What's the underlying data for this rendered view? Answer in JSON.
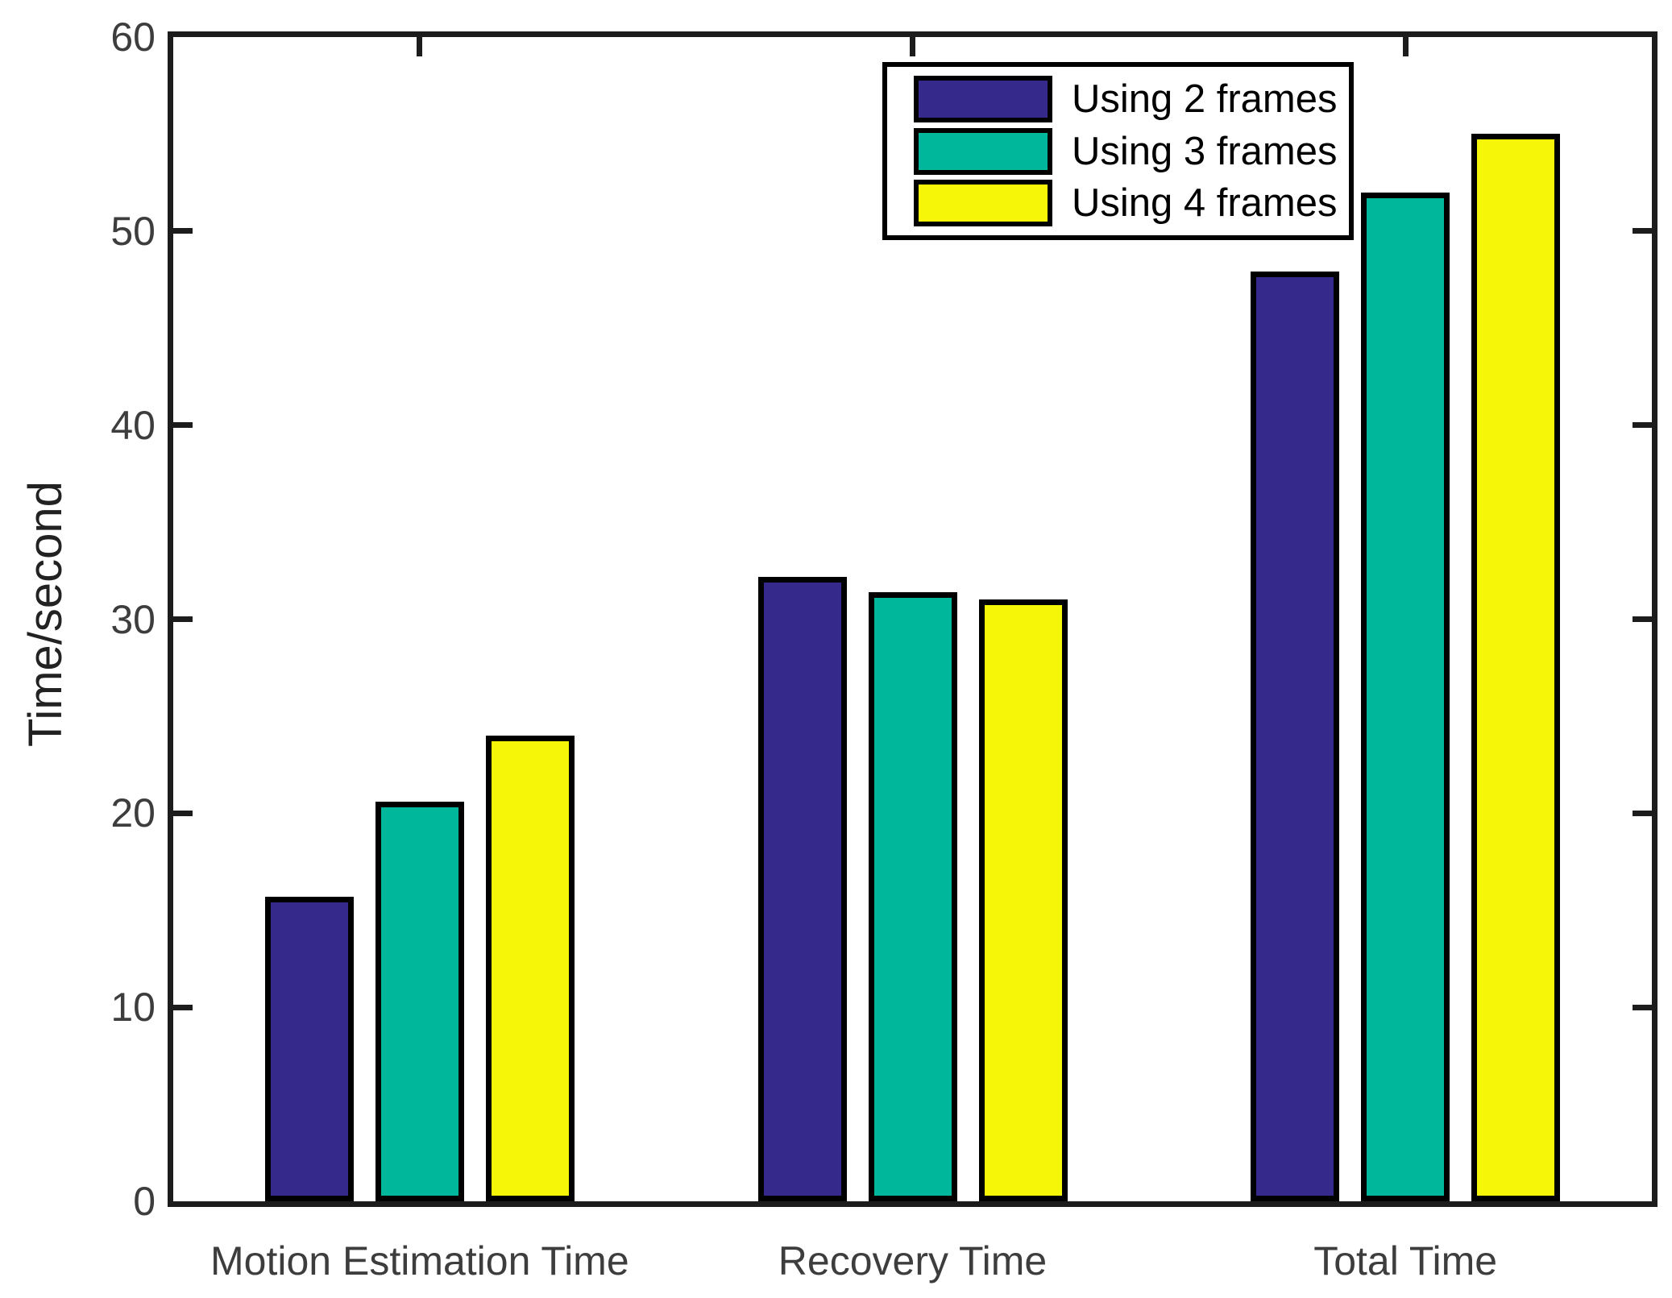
{
  "figure": {
    "background": "#ffffff",
    "axis_box_color": "#1c1c1c",
    "tick_label_color": "#3d3d3d",
    "axis_label_color": "#222222"
  },
  "chart_data": {
    "type": "bar",
    "title": "",
    "xlabel": "",
    "ylabel": "Time/second",
    "categories": [
      "Motion Estimation Time",
      "Recovery Time",
      "Total Time"
    ],
    "series": [
      {
        "name": "Using 2 frames",
        "color": "#35298C",
        "values": [
          15.7,
          32.2,
          47.9
        ]
      },
      {
        "name": "Using 3 frames",
        "color": "#00B79B",
        "values": [
          20.6,
          31.4,
          52.0
        ]
      },
      {
        "name": "Using 4 frames",
        "color": "#F5F608",
        "values": [
          24.0,
          31.0,
          55.0
        ]
      }
    ],
    "ylim": [
      0,
      60
    ],
    "yticks": [
      0,
      10,
      20,
      30,
      40,
      50,
      60
    ],
    "grid": false,
    "bar_edge_color": "#000000",
    "legend_position": "top-right-inside",
    "legend_entries": [
      "Using 2 frames",
      "Using 3 frames",
      "Using 4 frames"
    ]
  }
}
